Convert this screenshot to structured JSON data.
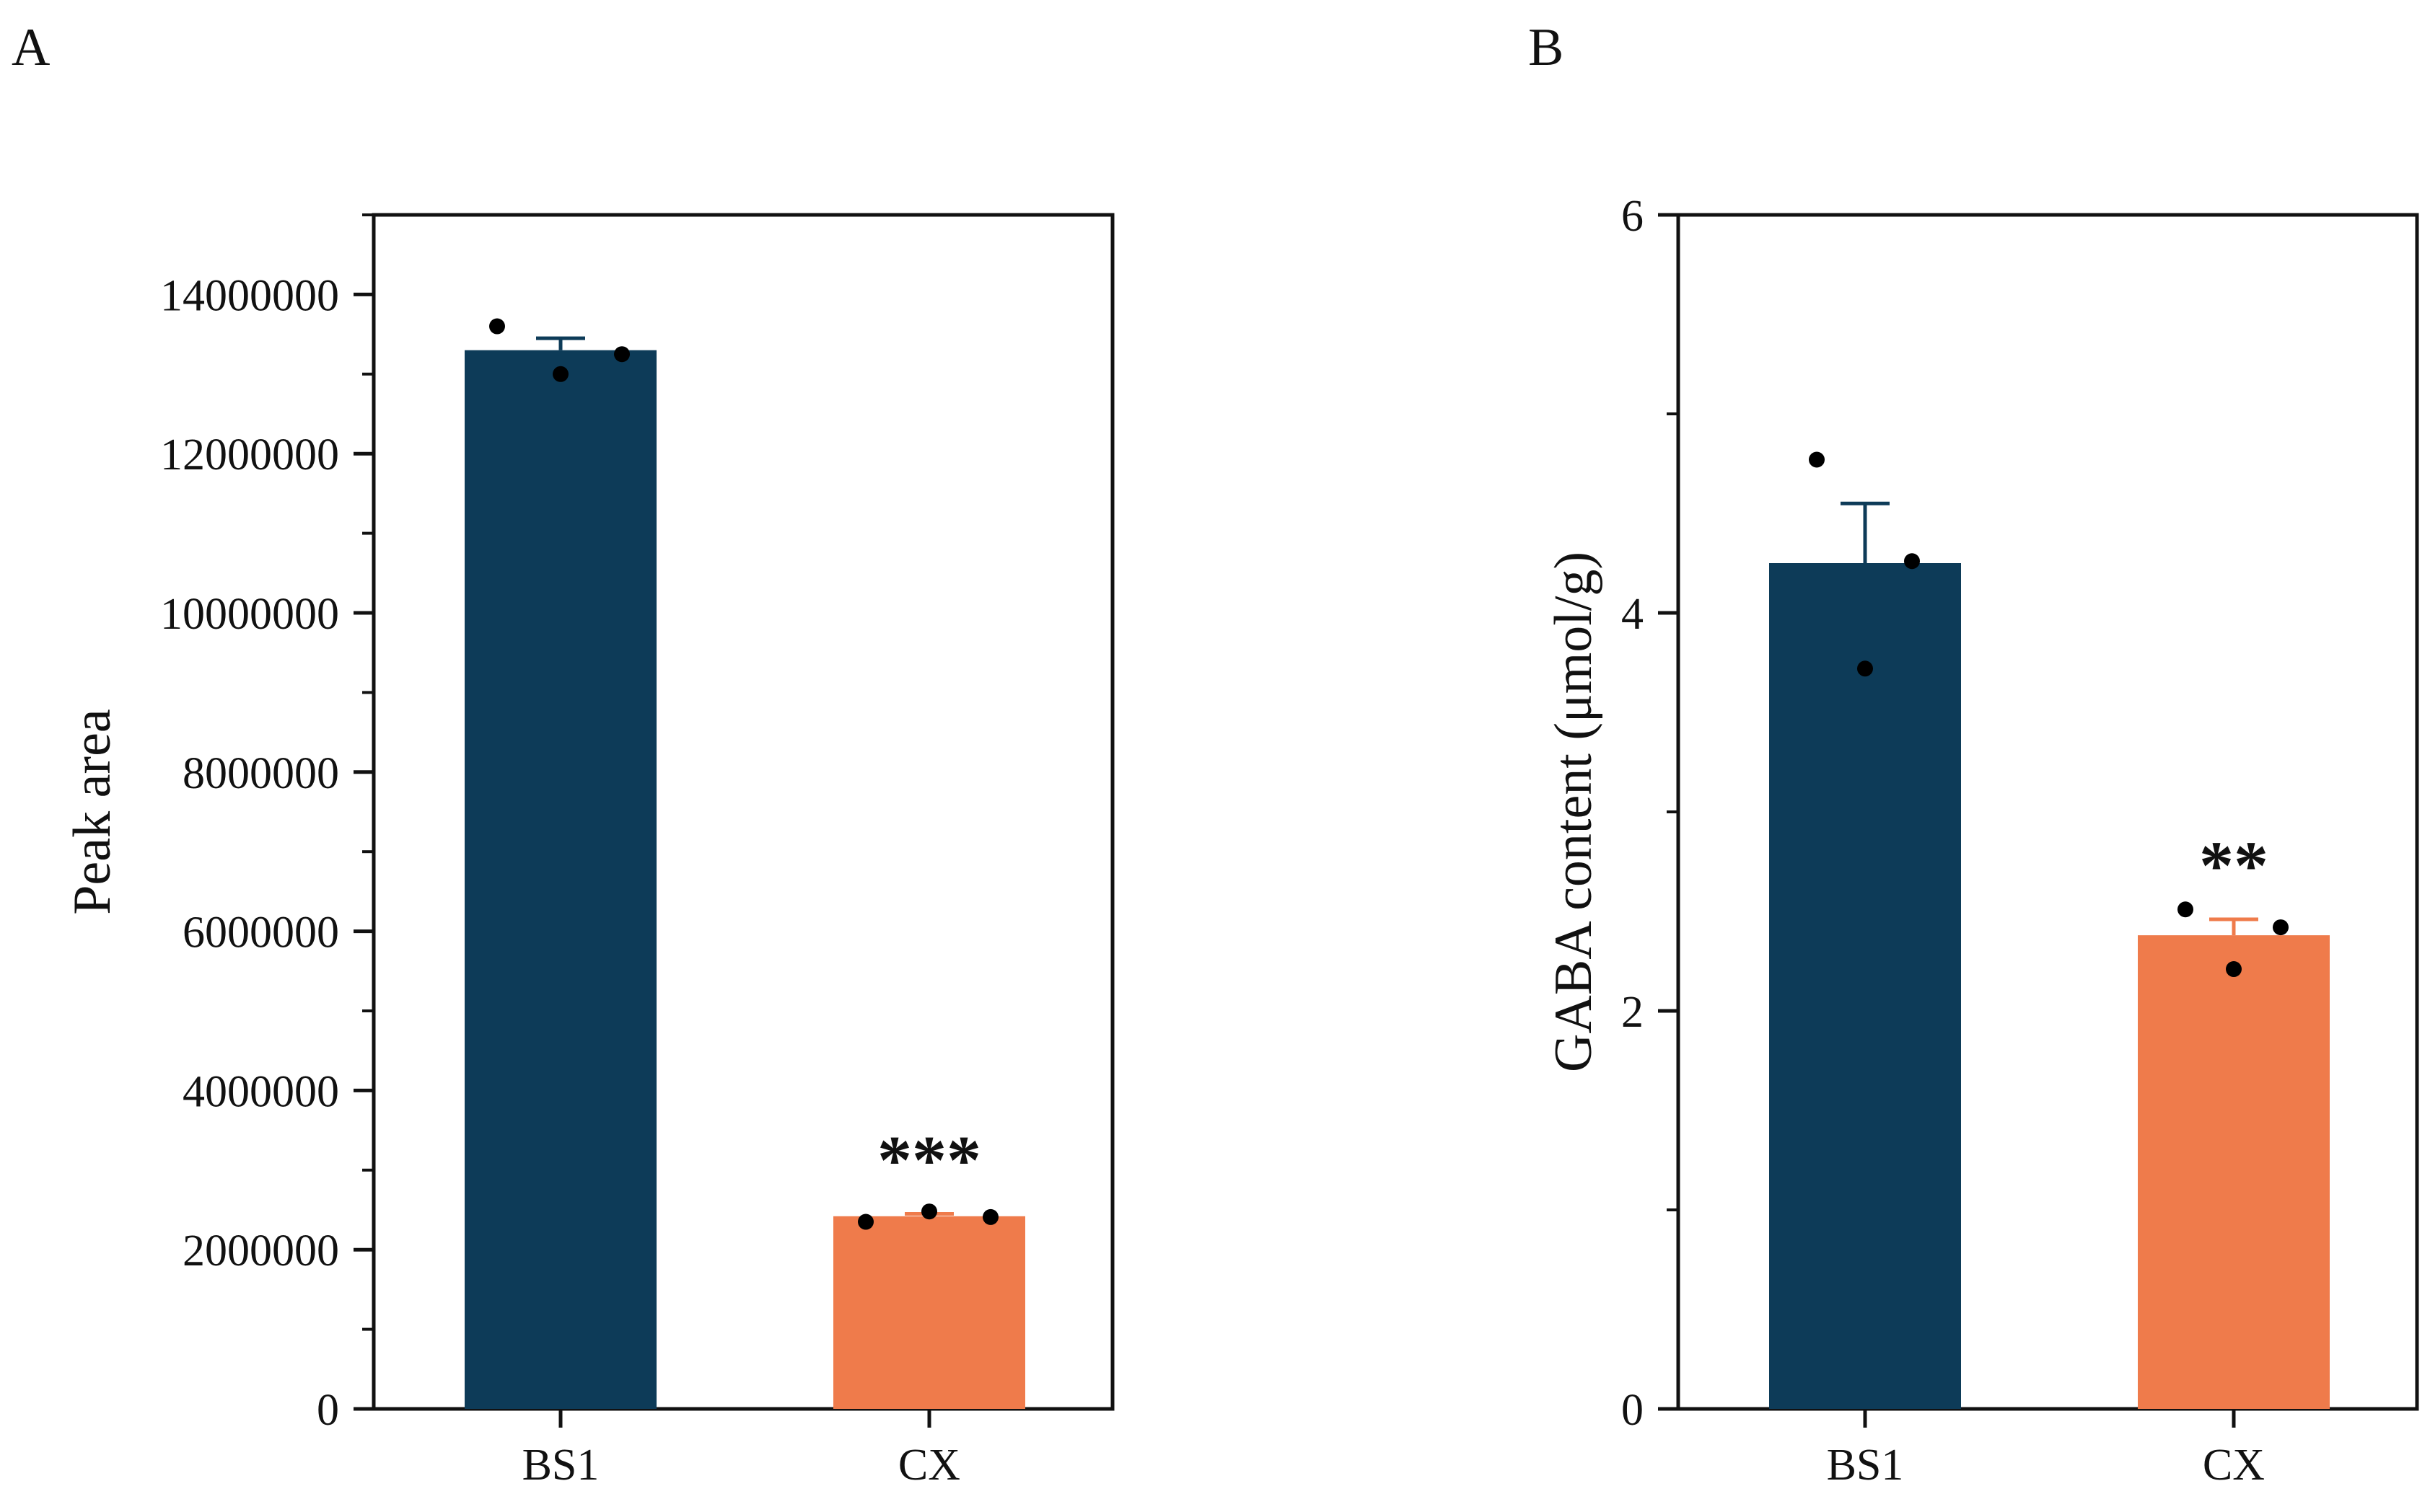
{
  "colors": {
    "bs1": "#0d3b58",
    "cx": "#ef7b4b",
    "axis": "#111111",
    "dot": "#000000"
  },
  "chart_data": [
    {
      "panel": "A",
      "type": "bar",
      "ylabel": "Peak area",
      "ylim": [
        0,
        15000000
      ],
      "ytick_values": [
        0,
        2000000,
        4000000,
        6000000,
        8000000,
        10000000,
        12000000,
        14000000
      ],
      "ytick_labels": [
        "0",
        "2000000",
        "4000000",
        "6000000",
        "8000000",
        "10000000",
        "12000000",
        "14000000"
      ],
      "minor_tick_step": 1000000,
      "categories": [
        "BS1",
        "CX"
      ],
      "values": [
        13300000,
        2420000
      ],
      "errors": [
        150000,
        30000
      ],
      "points": [
        [
          13600000,
          13000000,
          13250000
        ],
        [
          2350000,
          2480000,
          2410000
        ]
      ],
      "significance": [
        "",
        "***"
      ]
    },
    {
      "panel": "B",
      "type": "bar",
      "ylabel": "GABA content (μmol/g)",
      "ylim": [
        0,
        6
      ],
      "ytick_values": [
        0,
        2,
        4,
        6
      ],
      "ytick_labels": [
        "0",
        "2",
        "4",
        "6"
      ],
      "minor_tick_step": 1,
      "categories": [
        "BS1",
        "CX"
      ],
      "values": [
        4.25,
        2.38
      ],
      "errors": [
        0.3,
        0.08
      ],
      "points": [
        [
          4.77,
          3.72,
          4.26
        ],
        [
          2.51,
          2.21,
          2.42
        ]
      ],
      "significance": [
        "",
        "**"
      ]
    }
  ]
}
